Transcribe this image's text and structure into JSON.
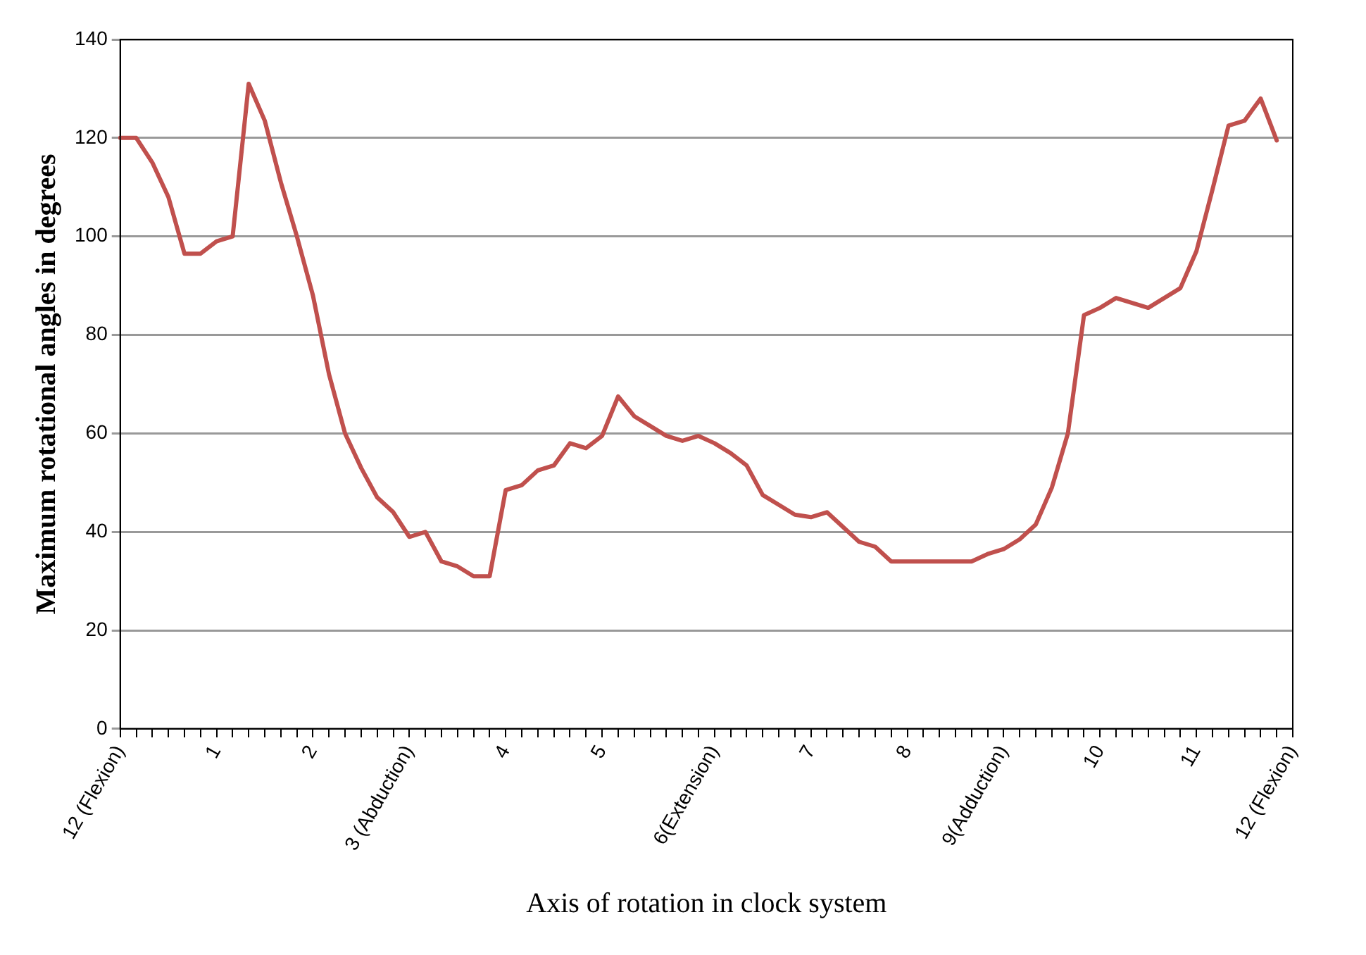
{
  "chart_data": {
    "type": "line",
    "xlabel": "Axis of rotation in clock system",
    "ylabel": "Maximum rotational angles in degrees",
    "categories": [
      "12 (Flexion)",
      null,
      null,
      null,
      null,
      null,
      "1",
      null,
      null,
      null,
      null,
      null,
      "2",
      null,
      null,
      null,
      null,
      null,
      "3 (Abduction)",
      null,
      null,
      null,
      null,
      null,
      "4",
      null,
      null,
      null,
      null,
      null,
      "5",
      null,
      null,
      null,
      null,
      null,
      null,
      "6(Extension)",
      null,
      null,
      null,
      null,
      null,
      "7",
      null,
      null,
      null,
      null,
      null,
      "8",
      null,
      null,
      null,
      null,
      null,
      "9(Adduction)",
      null,
      null,
      null,
      null,
      null,
      "10",
      null,
      null,
      null,
      null,
      null,
      "11",
      null,
      null,
      null,
      null,
      null,
      "12 (Flexion)"
    ],
    "ylim": [
      0,
      140
    ],
    "yticks": [
      0,
      20,
      40,
      60,
      80,
      100,
      120,
      140
    ],
    "grid": "y",
    "legend": false,
    "marker": "none",
    "line_style": "solid",
    "series": [
      {
        "color": "#c0504d",
        "values": [
          120,
          120,
          115,
          108,
          96.5,
          96.5,
          99,
          100,
          131,
          123.5,
          111,
          100,
          88,
          72,
          60,
          53,
          47,
          44,
          39,
          40,
          34,
          33,
          31,
          31,
          48.5,
          49.5,
          52.5,
          53.5,
          58,
          57,
          59.5,
          67.5,
          63.5,
          61.5,
          59.5,
          58.5,
          59.5,
          58,
          56,
          53.5,
          47.5,
          45.5,
          43.5,
          43,
          44,
          41,
          38,
          37,
          34,
          34,
          34,
          34,
          34,
          34,
          35.5,
          36.5,
          38.5,
          41.5,
          49,
          60,
          84,
          85.5,
          87.5,
          86.5,
          85.5,
          87.5,
          89.5,
          97,
          109.5,
          122.5,
          123.5,
          128,
          119.5,
          null
        ]
      }
    ]
  }
}
